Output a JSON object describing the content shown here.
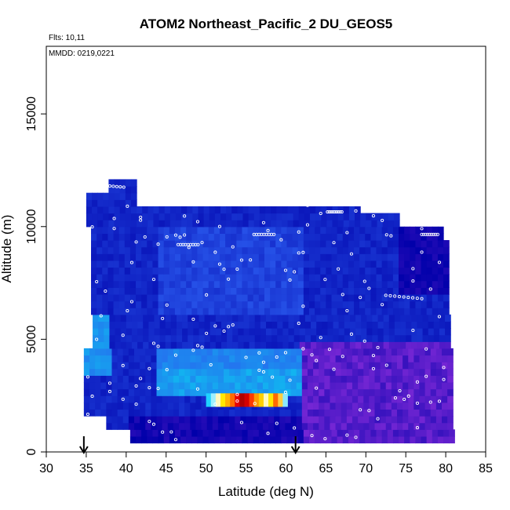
{
  "chart_data": {
    "type": "heatmap",
    "title": "ATOM2 Northeast_Pacific_2 DU_GEOS5",
    "notes": [
      "Flts: 10,11",
      "MMDD: 0219,0221"
    ],
    "xlabel": "Latitude (deg N)",
    "ylabel": "Altitude (m)",
    "xlim": [
      30,
      85
    ],
    "ylim": [
      0,
      18000
    ],
    "xticks": [
      "30",
      "35",
      "40",
      "45",
      "50",
      "55",
      "60",
      "65",
      "70",
      "75",
      "80",
      "85"
    ],
    "yticks": [
      "0",
      "5000",
      "10000",
      "15000"
    ],
    "ytick_values": [
      0,
      5000,
      10000,
      15000
    ],
    "arrows_at_latitude": [
      34.7,
      61.2
    ],
    "colors": {
      "background": "#0000aa",
      "blue_high": "#2a5aee",
      "cyan": "#12b4f0",
      "purple": "#7a28d6",
      "hot_red": "#e60000",
      "hot_yellow": "#ffe800"
    },
    "field_regions": [
      {
        "lat_range": [
          35,
          39
        ],
        "alt_range": [
          10800,
          11500
        ],
        "level": "low"
      },
      {
        "lat_range": [
          39,
          68
        ],
        "alt_range": [
          10000,
          11000
        ],
        "level": "low"
      },
      {
        "lat_range": [
          35.5,
          75
        ],
        "alt_range": [
          6000,
          10000
        ],
        "level": "mid"
      },
      {
        "lat_range": [
          35,
          38
        ],
        "alt_range": [
          3500,
          6000
        ],
        "level": "high"
      },
      {
        "lat_range": [
          44,
          62
        ],
        "alt_range": [
          2400,
          4200
        ],
        "level": "high"
      },
      {
        "lat_range": [
          62,
          80.5
        ],
        "alt_range": [
          500,
          5000
        ],
        "level": "purple"
      },
      {
        "lat_range": [
          50,
          60.5
        ],
        "alt_range": [
          2000,
          2600
        ],
        "level": "peak"
      }
    ],
    "flight_track_note": "white open circles mark sampling locations"
  }
}
